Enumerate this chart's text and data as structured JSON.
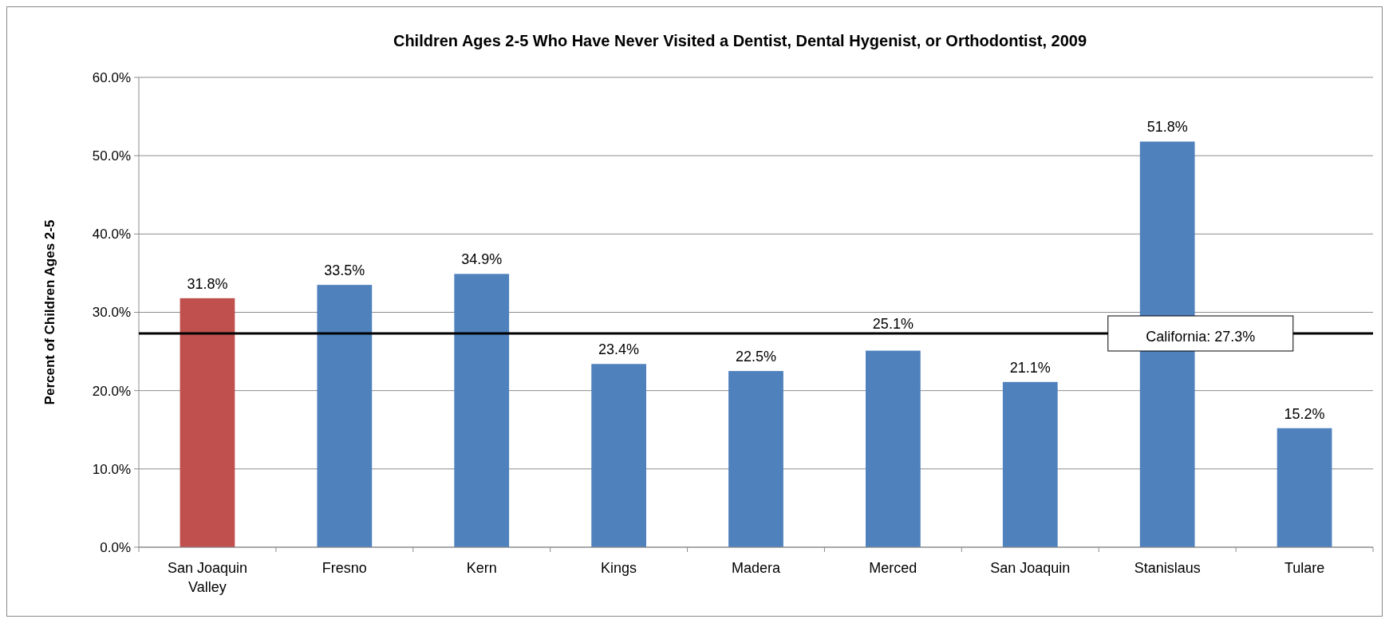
{
  "chart_data": {
    "type": "bar",
    "title": "Children Ages 2-5 Who Have Never Visited a Dentist, Dental Hygenist, or Orthodontist, 2009",
    "ylabel": "Percent of Children Ages 2-5",
    "categories": [
      "San Joaquin Valley",
      "Fresno",
      "Kern",
      "Kings",
      "Madera",
      "Merced",
      "San Joaquin",
      "Stanislaus",
      "Tulare"
    ],
    "values": [
      31.8,
      33.5,
      34.9,
      23.4,
      22.5,
      25.1,
      21.1,
      51.8,
      15.2
    ],
    "colors": [
      "#c0504d",
      "#4f81bd",
      "#4f81bd",
      "#4f81bd",
      "#4f81bd",
      "#4f81bd",
      "#4f81bd",
      "#4f81bd",
      "#4f81bd"
    ],
    "value_labels": [
      "31.8%",
      "33.5%",
      "34.9%",
      "23.4%",
      "22.5%",
      "25.1%",
      "21.1%",
      "51.8%",
      "15.2%"
    ],
    "ylim": [
      0,
      60
    ],
    "yticks": [
      {
        "value": 0,
        "label": "0.0%"
      },
      {
        "value": 10,
        "label": "10.0%"
      },
      {
        "value": 20,
        "label": "20.0%"
      },
      {
        "value": 30,
        "label": "30.0%"
      },
      {
        "value": 40,
        "label": "40.0%"
      },
      {
        "value": 50,
        "label": "50.0%"
      },
      {
        "value": 60,
        "label": "60.0%"
      }
    ],
    "grid": "y",
    "ref_lines": [
      {
        "axis": "y",
        "value": 27.3,
        "label": "California:  27.3%",
        "color": "#000000"
      }
    ]
  }
}
